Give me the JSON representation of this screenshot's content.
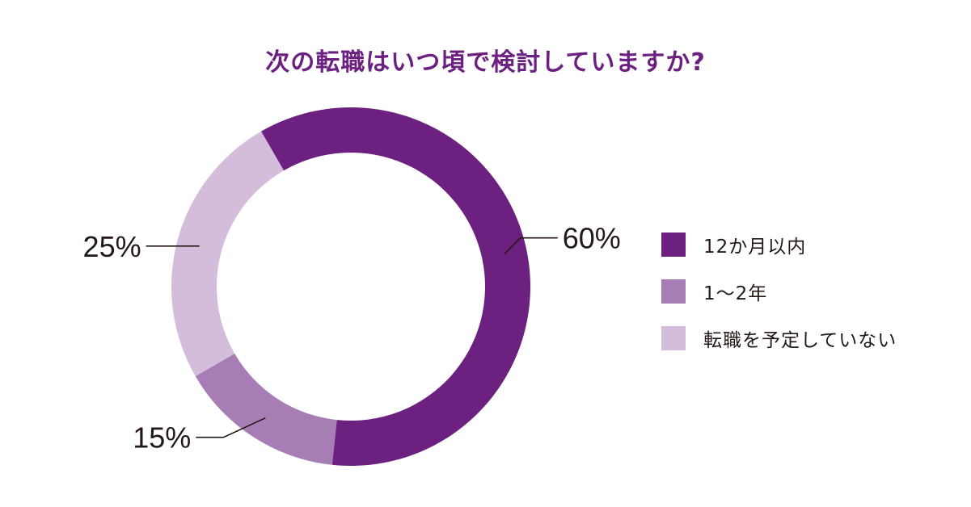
{
  "chart_data": {
    "type": "pie",
    "variant": "donut",
    "title": "次の転職はいつ頃で検討していますか?",
    "categories": [
      "12か月以内",
      "1〜2年",
      "転職を予定していない"
    ],
    "values": [
      60,
      15,
      25
    ],
    "labels": [
      "60%",
      "15%",
      "25%"
    ],
    "colors": [
      "#6c2180",
      "#a77db5",
      "#d4bcdb"
    ],
    "legend_position": "right"
  }
}
